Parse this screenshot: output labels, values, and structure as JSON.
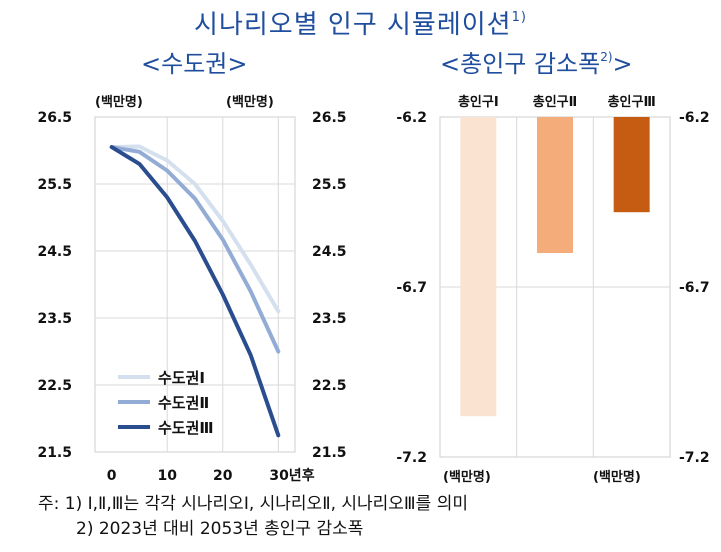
{
  "title": "시나리오별 인구 시뮬레이션",
  "title_sup": "1)",
  "left_subtitle": "<수도권>",
  "right_subtitle": "<총인구 감소폭",
  "right_subtitle_sup": "2)",
  "right_subtitle_end": ">",
  "notes": {
    "line1": "주: 1)  Ⅰ,Ⅱ,Ⅲ는 각각 시나리오Ⅰ, 시나리오Ⅱ, 시나리오Ⅲ를 의미",
    "line2": "2) 2023년 대비 2053년 총인구 감소폭"
  },
  "chart_data": [
    {
      "type": "line",
      "unit_left": "(백만명)",
      "unit_right": "(백만명)",
      "x_suffix": "년후",
      "xlim": [
        -3,
        33
      ],
      "ylim": [
        21.5,
        26.5
      ],
      "x_ticks": [
        0,
        10,
        20,
        30
      ],
      "y_ticks": [
        "26.5",
        "25.5",
        "24.5",
        "23.5",
        "22.5",
        "21.5"
      ],
      "series": [
        {
          "name": "수도권Ⅰ",
          "color": "#d5e0ef",
          "x": [
            0,
            5,
            10,
            15,
            20,
            25,
            30
          ],
          "y": [
            26.05,
            26.06,
            25.85,
            25.5,
            24.95,
            24.3,
            23.6
          ]
        },
        {
          "name": "수도권Ⅱ",
          "color": "#93acd6",
          "x": [
            0,
            5,
            10,
            15,
            20,
            25,
            30
          ],
          "y": [
            26.05,
            25.98,
            25.7,
            25.28,
            24.67,
            23.9,
            23.0
          ]
        },
        {
          "name": "수도권Ⅲ",
          "color": "#2a4d8f",
          "x": [
            0,
            5,
            10,
            15,
            20,
            25,
            30
          ],
          "y": [
            26.05,
            25.8,
            25.3,
            24.65,
            23.85,
            22.95,
            21.75
          ]
        }
      ]
    },
    {
      "type": "bar",
      "unit_left": "(백만명)",
      "unit_right": "(백만명)",
      "categories": [
        "총인구Ⅰ",
        "총인구Ⅱ",
        "총인구Ⅲ"
      ],
      "values": [
        -7.08,
        -6.6,
        -6.48
      ],
      "colors": [
        "#fbe3d2",
        "#f4ac7a",
        "#c65c12"
      ],
      "ylim": [
        -7.2,
        -6.2
      ],
      "y_ticks": [
        "-6.2",
        "-6.7",
        "-7.2"
      ]
    }
  ]
}
